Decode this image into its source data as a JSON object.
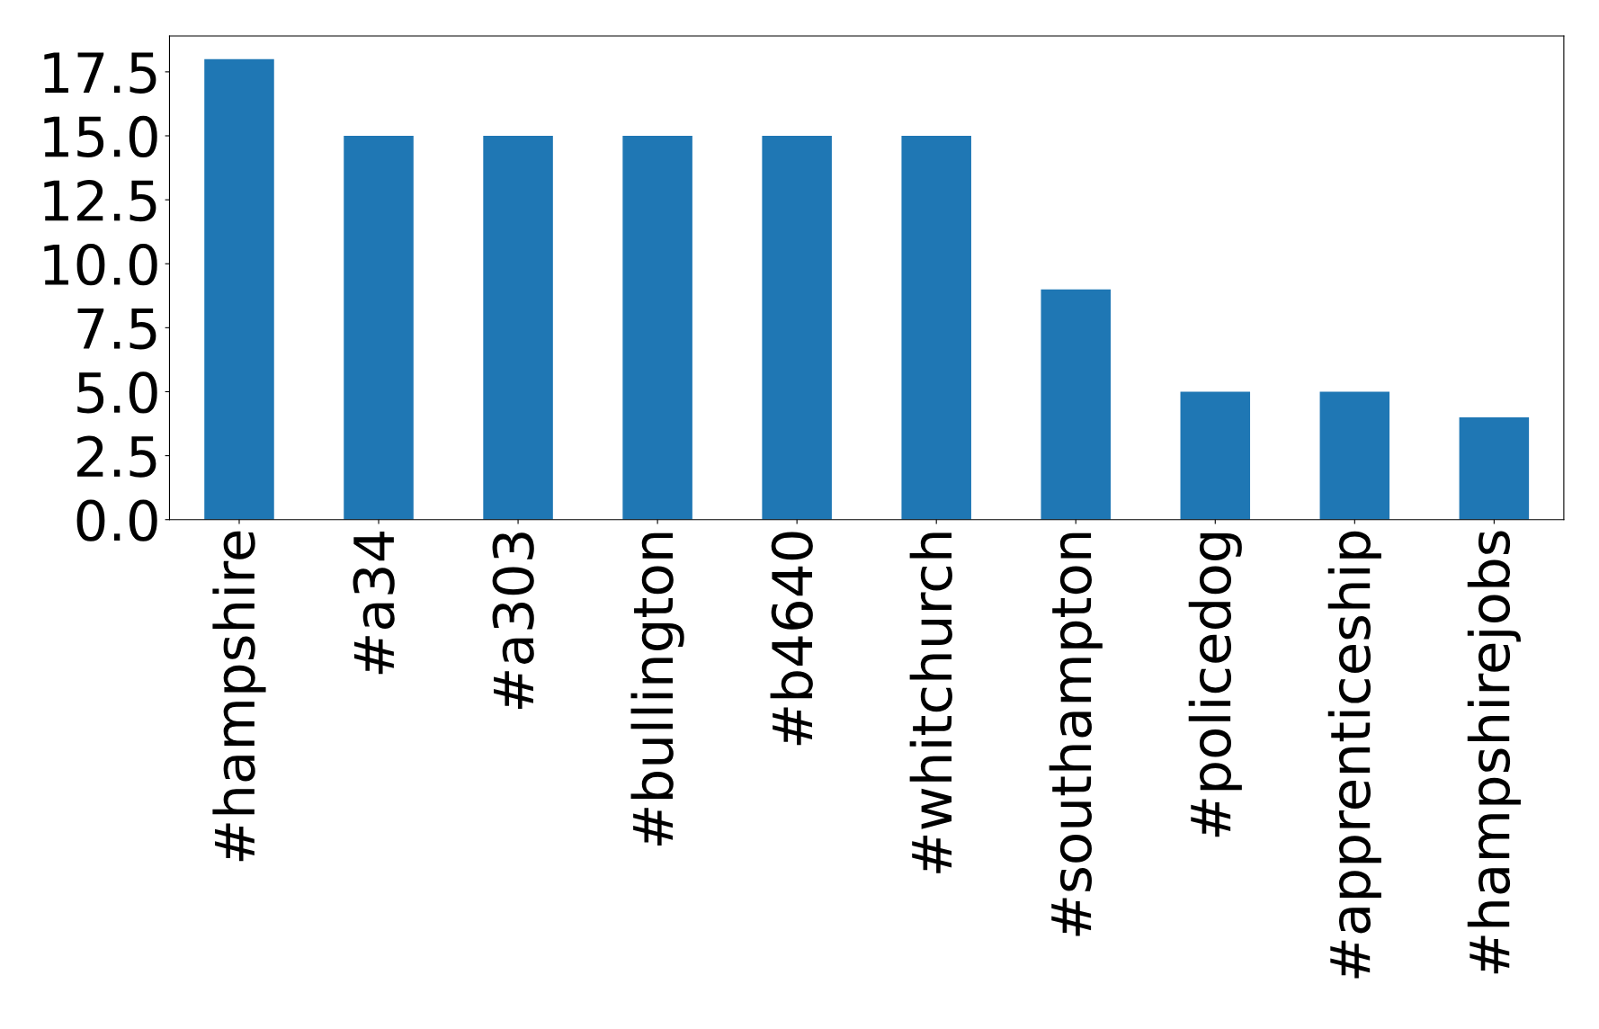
{
  "chart_data": {
    "type": "bar",
    "categories": [
      "#hampshire",
      "#a34",
      "#a303",
      "#bullington",
      "#b4640",
      "#whitchurch",
      "#southampton",
      "#policedog",
      "#apprenticeship",
      "#hampshirejobs"
    ],
    "values": [
      18,
      15,
      15,
      15,
      15,
      15,
      9,
      5,
      5,
      4
    ],
    "color": "#1f77b4",
    "ylim": [
      0,
      18.9
    ],
    "yticks": [
      {
        "value": 0,
        "label": "0.0"
      },
      2.5,
      {
        "value": 5,
        "label": "5.0"
      },
      7.5,
      {
        "value": 10,
        "label": "10.0"
      },
      12.5,
      {
        "value": 15,
        "label": "15.0"
      },
      17.5
    ],
    "grid": false,
    "legend": false
  }
}
